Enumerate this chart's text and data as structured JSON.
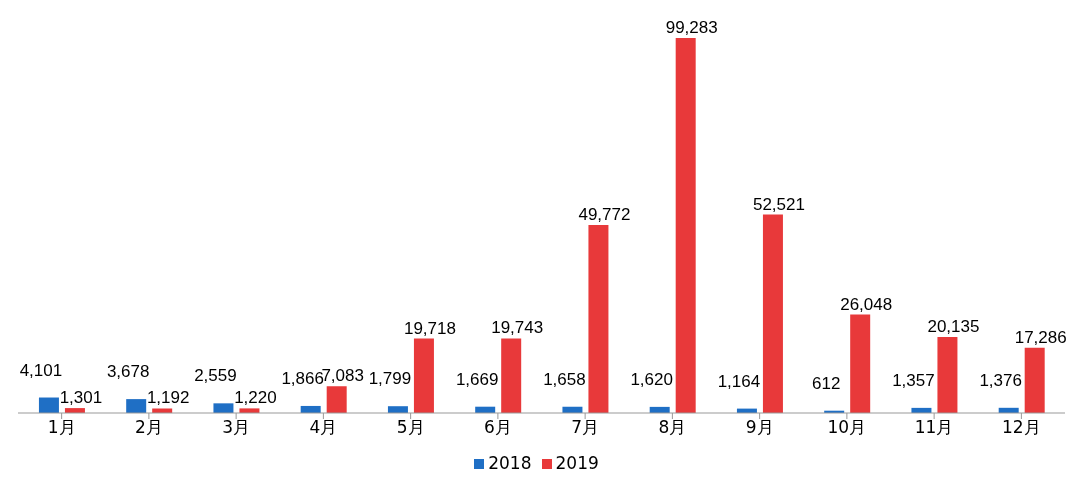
{
  "chart_data": {
    "type": "bar",
    "categories": [
      "1月",
      "2月",
      "3月",
      "4月",
      "5月",
      "6月",
      "7月",
      "8月",
      "9月",
      "10月",
      "11月",
      "12月"
    ],
    "series": [
      {
        "name": "2018",
        "color": "#1f6fc5",
        "values": [
          4101,
          3678,
          2559,
          1866,
          1799,
          1669,
          1658,
          1620,
          1164,
          612,
          1357,
          1376
        ],
        "value_labels": [
          "4,101",
          "3,678",
          "2,559",
          "1,866",
          "1,799",
          "1,669",
          "1,658",
          "1,620",
          "1,164",
          "612",
          "1,357",
          "1,376"
        ]
      },
      {
        "name": "2019",
        "color": "#e8393a",
        "values": [
          1301,
          1192,
          1220,
          7083,
          19718,
          19743,
          49772,
          99283,
          52521,
          26048,
          20135,
          17286
        ],
        "value_labels": [
          "1,301",
          "1,192",
          "1,220",
          "7,083",
          "19,718",
          "19,743",
          "49,772",
          "99,283",
          "52,521",
          "26,048",
          "20,135",
          "17,286"
        ]
      }
    ],
    "legend": "bottom",
    "grid": false
  }
}
